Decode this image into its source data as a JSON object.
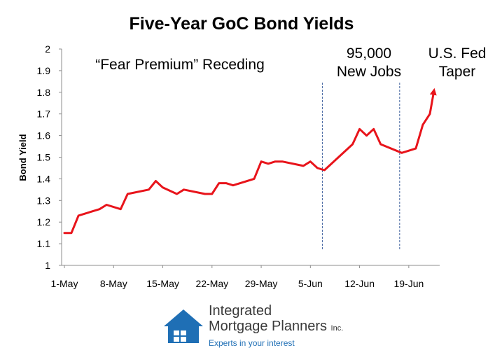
{
  "chart_data": {
    "type": "line",
    "title": "Five-Year GoC Bond Yields",
    "ylabel": "Bond Yield",
    "xlabel": "",
    "ylim": [
      1,
      2
    ],
    "yticks": [
      "1",
      "1.1",
      "1.2",
      "1.3",
      "1.4",
      "1.5",
      "1.6",
      "1.7",
      "1.8",
      "1.9",
      "2"
    ],
    "xticks": [
      {
        "label": "1-May",
        "day": 1
      },
      {
        "label": "8-May",
        "day": 8
      },
      {
        "label": "15-May",
        "day": 15
      },
      {
        "label": "22-May",
        "day": 22
      },
      {
        "label": "29-May",
        "day": 29
      },
      {
        "label": "5-Jun",
        "day": 36
      },
      {
        "label": "12-Jun",
        "day": 43
      },
      {
        "label": "19-Jun",
        "day": 50
      }
    ],
    "grid": false,
    "series": [
      {
        "color": "#e8141b",
        "x": [
          1,
          2,
          3,
          6,
          7,
          9,
          10,
          13,
          14,
          15,
          17,
          18,
          21,
          22,
          23,
          24,
          25,
          28,
          29,
          30,
          31,
          32,
          35,
          36,
          37,
          38,
          42,
          43,
          44,
          45,
          46,
          49,
          50,
          51,
          52,
          53
        ],
        "y": [
          1.15,
          1.15,
          1.23,
          1.26,
          1.28,
          1.26,
          1.33,
          1.35,
          1.39,
          1.36,
          1.33,
          1.35,
          1.33,
          1.33,
          1.38,
          1.38,
          1.37,
          1.4,
          1.48,
          1.47,
          1.48,
          1.48,
          1.46,
          1.48,
          1.45,
          1.44,
          1.56,
          1.63,
          1.6,
          1.63,
          1.56,
          1.52,
          1.53,
          1.54,
          1.65,
          1.7
        ]
      }
    ],
    "arrow_to": {
      "x": 53.6,
      "y": 1.81
    },
    "event_lines": [
      38,
      49
    ],
    "annotations": [
      {
        "text": "“Fear Premium” Receding"
      },
      {
        "text": "95,000\nNew Jobs"
      },
      {
        "text": "U.S. Fed\nTaper"
      }
    ]
  },
  "brand": {
    "name": "Integrated",
    "name2": "Mortgage Planners",
    "inc": "Inc.",
    "tagline": "Experts in your interest"
  },
  "colors": {
    "series": "#e8141b",
    "event_line": "#3b5e9c",
    "logo_blue": "#1f6fb5",
    "axis": "#8c8c8c"
  }
}
